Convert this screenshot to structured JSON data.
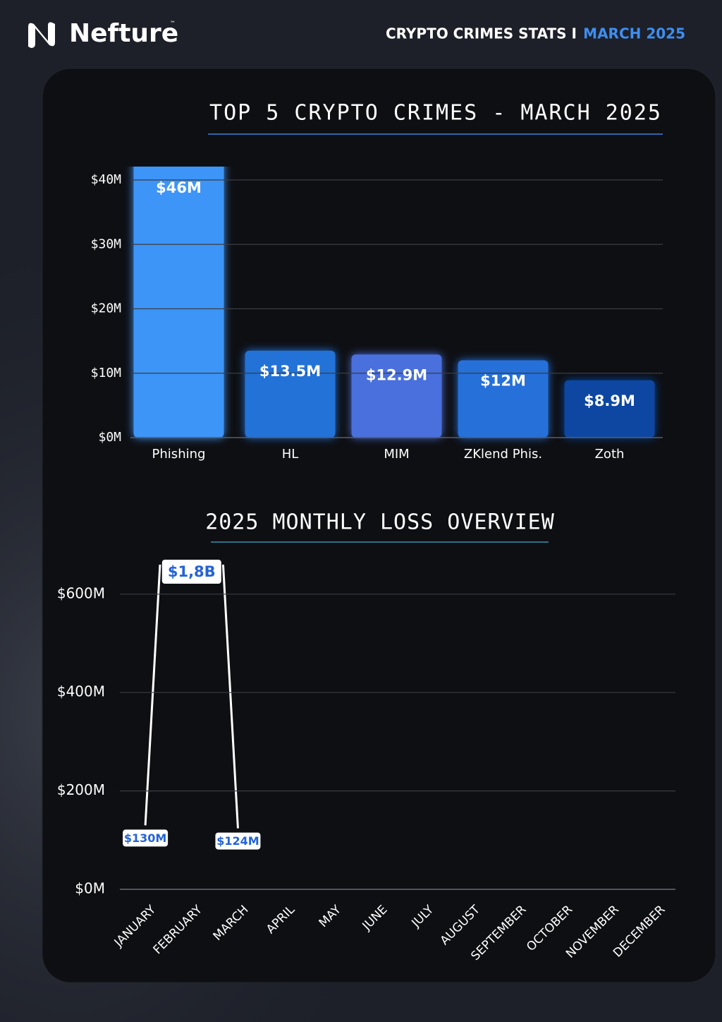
{
  "header": {
    "brand": "Nefture",
    "trademark": "™",
    "title": "CRYPTO CRIMES STATS I",
    "date": "MARCH 2025"
  },
  "chart_data": [
    {
      "type": "bar",
      "title": "TOP 5 CRYPTO CRIMES - MARCH 2025",
      "categories": [
        "Phishing",
        "HL",
        "MIM",
        "ZKlend Phis.",
        "Zoth"
      ],
      "values": [
        46,
        13.5,
        12.9,
        12,
        8.9
      ],
      "value_labels": [
        "$46M",
        "$13.5M",
        "$12.9M",
        "$12M",
        "$8.9M"
      ],
      "colors": [
        "#3d95f7",
        "#2272d8",
        "#4a6fdc",
        "#2670d9",
        "#0d47a1"
      ],
      "ylim": [
        0,
        42
      ],
      "yticks": [
        {
          "value": 0,
          "label": "$0M"
        },
        {
          "value": 10,
          "label": "$10M"
        },
        {
          "value": 20,
          "label": "$20M"
        },
        {
          "value": 30,
          "label": "$30M"
        },
        {
          "value": 40,
          "label": "$40M"
        }
      ],
      "grid": true
    },
    {
      "type": "line",
      "title": "2025 MONTHLY LOSS OVERVIEW",
      "categories": [
        "JANUARY",
        "FEBRUARY",
        "MARCH",
        "APRIL",
        "MAY",
        "JUNE",
        "JULY",
        "AUGUST",
        "SEPTEMBER",
        "OCTOBER",
        "NOVEMBER",
        "DECEMBER"
      ],
      "series": [
        {
          "color": "#ffffff",
          "values": [
            130,
            1800,
            124,
            null,
            null,
            null,
            null,
            null,
            null,
            null,
            null,
            null
          ],
          "value_labels": [
            "$130M",
            "$1,8B",
            "$124M",
            null,
            null,
            null,
            null,
            null,
            null,
            null,
            null,
            null
          ]
        }
      ],
      "ylim": [
        0,
        660
      ],
      "yticks": [
        {
          "value": 0,
          "label": "$0M"
        },
        {
          "value": 200,
          "label": "$200M"
        },
        {
          "value": 400,
          "label": "$400M"
        },
        {
          "value": 600,
          "label": "$600M"
        }
      ],
      "grid": true
    }
  ]
}
